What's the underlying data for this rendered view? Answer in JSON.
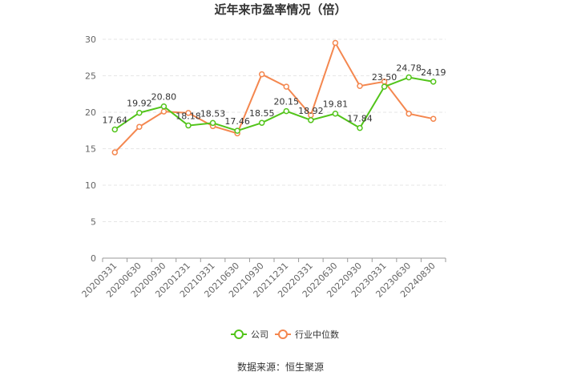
{
  "chart_data": {
    "type": "line",
    "title": "近年来市盈率情况（倍）",
    "xlabel": "",
    "ylabel": "",
    "ylim": [
      0,
      30
    ],
    "yticks": [
      0,
      5,
      10,
      15,
      20,
      25,
      30
    ],
    "grid": true,
    "legend_position": "bottom",
    "categories": [
      "20200331",
      "20200630",
      "20200930",
      "20201231",
      "20210331",
      "20210630",
      "20210930",
      "20211231",
      "20220331",
      "20220630",
      "20220930",
      "20230331",
      "20230630",
      "20240830"
    ],
    "series": [
      {
        "name": "公司",
        "color": "#52c41a",
        "values": [
          17.64,
          19.92,
          20.8,
          18.18,
          18.53,
          17.46,
          18.55,
          20.15,
          18.92,
          19.81,
          17.84,
          23.5,
          24.78,
          24.19
        ],
        "labels": [
          "17.64",
          "19.92",
          "20.80",
          "18.18",
          "18.53",
          "17.46",
          "18.55",
          "20.15",
          "18.92",
          "19.81",
          "17.84",
          "23.50",
          "24.78",
          "24.19"
        ]
      },
      {
        "name": "行业中位数",
        "color": "#f4874f",
        "values": [
          14.5,
          18.0,
          20.1,
          19.9,
          18.1,
          17.1,
          25.2,
          23.5,
          19.6,
          29.5,
          23.6,
          24.2,
          19.8,
          19.1
        ]
      }
    ]
  },
  "source_text": "数据来源：恒生聚源"
}
